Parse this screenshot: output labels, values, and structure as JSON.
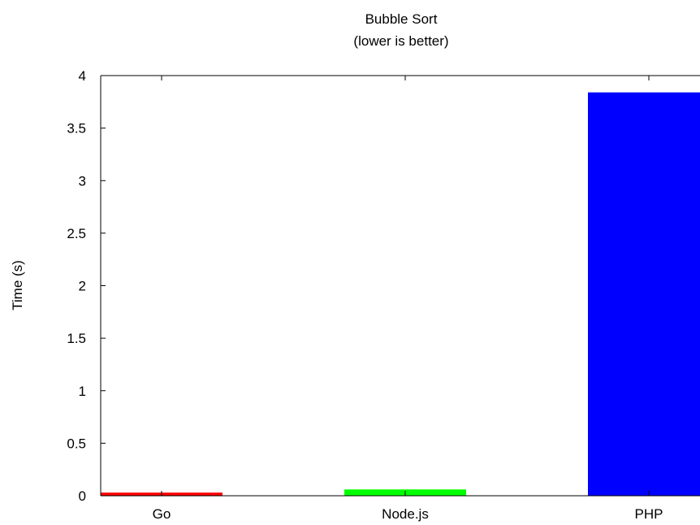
{
  "chart_data": {
    "type": "bar",
    "title": "Bubble Sort",
    "subtitle": "(lower is better)",
    "xlabel": "",
    "ylabel": "Time (s)",
    "categories": [
      "Go",
      "Node.js",
      "PHP"
    ],
    "values": [
      0.03,
      0.06,
      3.84
    ],
    "colors": [
      "#ff0000",
      "#00ff00",
      "#0000ff"
    ],
    "ylim": [
      0,
      4
    ],
    "yticks": [
      0,
      0.5,
      1,
      1.5,
      2,
      2.5,
      3,
      3.5,
      4
    ],
    "ytick_labels": [
      "0",
      "0.5",
      "1",
      "1.5",
      "2",
      "2.5",
      "3",
      "3.5",
      "4"
    ],
    "grid": false,
    "legend": "none"
  }
}
